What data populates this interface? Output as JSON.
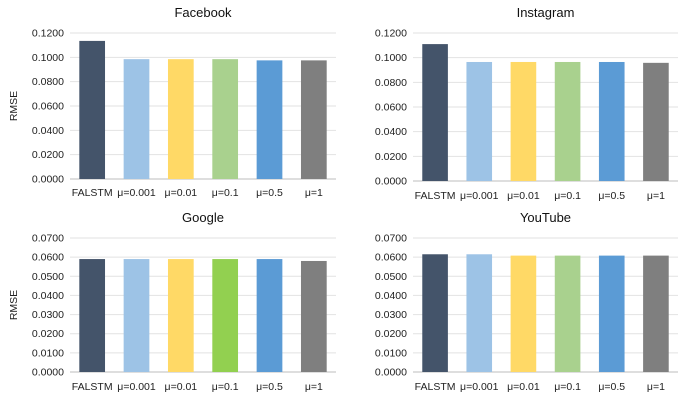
{
  "chart_data": [
    {
      "type": "bar",
      "title": "Facebook",
      "ylabel": "RMSE",
      "categories": [
        "FALSTM",
        "μ=0.001",
        "μ=0.01",
        "μ=0.1",
        "μ=0.5",
        "μ=1"
      ],
      "values": [
        0.1135,
        0.0985,
        0.0985,
        0.0985,
        0.0975,
        0.0975
      ],
      "colors": [
        "#44546a",
        "#9dc3e6",
        "#ffd966",
        "#a9d18e",
        "#5b9bd5",
        "#7f7f7f"
      ],
      "ylim": [
        0,
        0.12
      ],
      "yticks": [
        "0.0000",
        "0.0200",
        "0.0400",
        "0.0600",
        "0.0800",
        "0.1000",
        "0.1200"
      ],
      "grid": true
    },
    {
      "type": "bar",
      "title": "Instagram",
      "ylabel": "",
      "categories": [
        "FALSTM",
        "μ=0.001",
        "μ=0.01",
        "μ=0.1",
        "μ=0.5",
        "μ=1"
      ],
      "values": [
        0.111,
        0.0965,
        0.0965,
        0.0965,
        0.0965,
        0.0958
      ],
      "colors": [
        "#44546a",
        "#9dc3e6",
        "#ffd966",
        "#a9d18e",
        "#5b9bd5",
        "#7f7f7f"
      ],
      "ylim": [
        0,
        0.12
      ],
      "yticks": [
        "0.0000",
        "0.0200",
        "0.0400",
        "0.0600",
        "0.0800",
        "0.1000",
        "0.1200"
      ],
      "grid": true
    },
    {
      "type": "bar",
      "title": "Google",
      "ylabel": "RMSE",
      "categories": [
        "FALSTM",
        "μ=0.001",
        "μ=0.01",
        "μ=0.1",
        "μ=0.5",
        "μ=1"
      ],
      "values": [
        0.059,
        0.059,
        0.059,
        0.059,
        0.059,
        0.058
      ],
      "colors": [
        "#44546a",
        "#9dc3e6",
        "#ffd966",
        "#92d050",
        "#5b9bd5",
        "#7f7f7f"
      ],
      "ylim": [
        0,
        0.07
      ],
      "yticks": [
        "0.0000",
        "0.0100",
        "0.0200",
        "0.0300",
        "0.0400",
        "0.0500",
        "0.0600",
        "0.0700"
      ],
      "grid": true
    },
    {
      "type": "bar",
      "title": "YouTube",
      "ylabel": "",
      "categories": [
        "FALSTM",
        "μ=0.001",
        "μ=0.01",
        "μ=0.1",
        "μ=0.5",
        "μ=1"
      ],
      "values": [
        0.0615,
        0.0615,
        0.0608,
        0.0608,
        0.0608,
        0.0608
      ],
      "colors": [
        "#44546a",
        "#9dc3e6",
        "#ffd966",
        "#a9d18e",
        "#5b9bd5",
        "#7f7f7f"
      ],
      "ylim": [
        0,
        0.07
      ],
      "yticks": [
        "0.0000",
        "0.0100",
        "0.0200",
        "0.0300",
        "0.0400",
        "0.0500",
        "0.0600",
        "0.0700"
      ],
      "grid": true
    }
  ]
}
